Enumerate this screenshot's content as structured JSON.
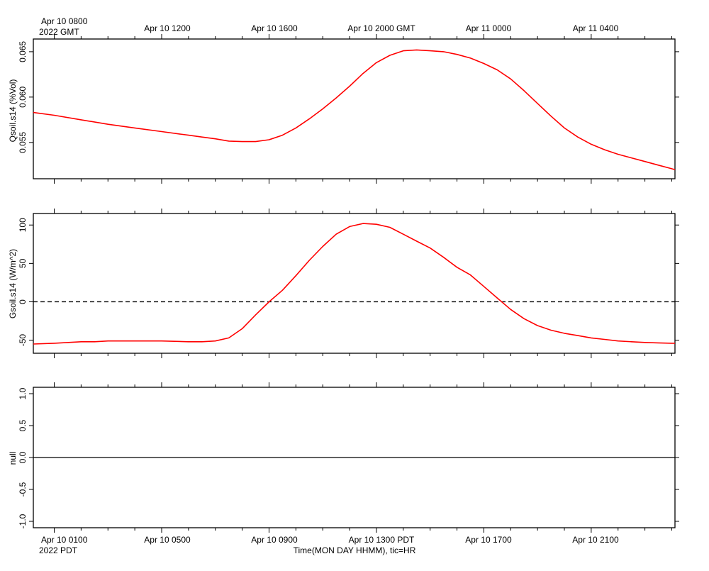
{
  "top_axis": {
    "first_label": "Apr 10 0800",
    "first_sublabel": "2022 GMT",
    "labels": [
      "Apr 10 1200",
      "Apr 10 1600",
      "Apr 10 2000 GMT",
      "Apr 11 0000",
      "Apr 11 0400"
    ]
  },
  "bottom_axis": {
    "first_label": "Apr 10 0100",
    "first_sublabel": "2022 PDT",
    "labels": [
      "Apr 10 0500",
      "Apr 10 0900",
      "Apr 10 1300 PDT",
      "Apr 10 1700",
      "Apr 10 2100"
    ],
    "title": "Time(MON DAY HHMM), tic=HR"
  },
  "colors": {
    "series": "#ff0000",
    "axes": "#000000",
    "zero_line": "#000000"
  },
  "chart_data": [
    {
      "type": "line",
      "ylabel": "Qsoil.s14 (%Vol)",
      "x_unit": "hours since Apr 10 0000 PDT",
      "xlim": [
        0.22,
        24.12
      ],
      "ylim": [
        0.051,
        0.0664
      ],
      "yticks": [
        0.055,
        0.06,
        0.065
      ],
      "ytick_labels": [
        "0.055",
        "0.060",
        "0.065"
      ],
      "series": [
        {
          "x": [
            0.22,
            1,
            2,
            3,
            4,
            5,
            6,
            6.5,
            7,
            7.5,
            8,
            8.5,
            9,
            9.5,
            10,
            10.5,
            11,
            11.5,
            12,
            12.5,
            13,
            13.5,
            14,
            14.5,
            15,
            15.5,
            16,
            16.5,
            17,
            17.5,
            18,
            18.5,
            19,
            19.5,
            20,
            20.5,
            21,
            21.5,
            22,
            22.5,
            23,
            23.5,
            24,
            24.12
          ],
          "y": [
            0.0583,
            0.058,
            0.0575,
            0.057,
            0.0566,
            0.0562,
            0.0558,
            0.0556,
            0.0554,
            0.05515,
            0.0551,
            0.0551,
            0.0553,
            0.0558,
            0.0566,
            0.0576,
            0.0587,
            0.0599,
            0.0612,
            0.0626,
            0.0638,
            0.0646,
            0.0651,
            0.0652,
            0.0651,
            0.065,
            0.0647,
            0.0643,
            0.0637,
            0.063,
            0.062,
            0.0607,
            0.0593,
            0.0579,
            0.0566,
            0.0556,
            0.0548,
            0.0542,
            0.0537,
            0.0533,
            0.0529,
            0.0525,
            0.0521,
            0.052
          ]
        }
      ]
    },
    {
      "type": "line",
      "ylabel": "Gsoil.s14 (W/m^2)",
      "x_unit": "hours since Apr 10 0000 PDT",
      "xlim": [
        0.22,
        24.12
      ],
      "ylim": [
        -67,
        115
      ],
      "yticks": [
        -50,
        0,
        50,
        100
      ],
      "ytick_labels": [
        "-50",
        "0",
        "50",
        "100"
      ],
      "reference_line": 0,
      "series": [
        {
          "x": [
            0.22,
            1,
            2,
            2.5,
            3,
            4,
            5,
            6,
            6.5,
            7,
            7.5,
            8,
            8.5,
            9,
            9.5,
            10,
            10.5,
            11,
            11.5,
            12,
            12.5,
            13,
            13.5,
            14,
            14.5,
            15,
            15.5,
            16,
            16.5,
            17,
            17.5,
            18,
            18.5,
            19,
            19.5,
            20,
            20.5,
            21,
            21.5,
            22,
            22.5,
            23,
            23.5,
            24,
            24.12
          ],
          "y": [
            -55,
            -54,
            -52,
            -52,
            -51,
            -51,
            -51,
            -52,
            -52,
            -51,
            -47,
            -35,
            -17,
            0,
            15,
            34,
            54,
            72,
            88,
            98,
            102,
            101,
            97,
            88,
            79,
            70,
            58,
            45,
            35,
            20,
            5,
            -10,
            -22,
            -31,
            -37,
            -41,
            -44,
            -47,
            -49,
            -51,
            -52,
            -53,
            -53.5,
            -54,
            -54
          ]
        }
      ]
    },
    {
      "type": "line",
      "ylabel": "null",
      "x_unit": "hours since Apr 10 0000 PDT",
      "xlim": [
        0.22,
        24.12
      ],
      "ylim": [
        -1.1,
        1.1
      ],
      "yticks": [
        -1.0,
        -0.5,
        0.0,
        0.5,
        1.0
      ],
      "ytick_labels": [
        "-1.0",
        "-0.5",
        "0.0",
        "0.5",
        "1.0"
      ],
      "series": [
        {
          "x": [
            0.22,
            24.12
          ],
          "y": [
            0,
            0
          ]
        }
      ]
    }
  ]
}
